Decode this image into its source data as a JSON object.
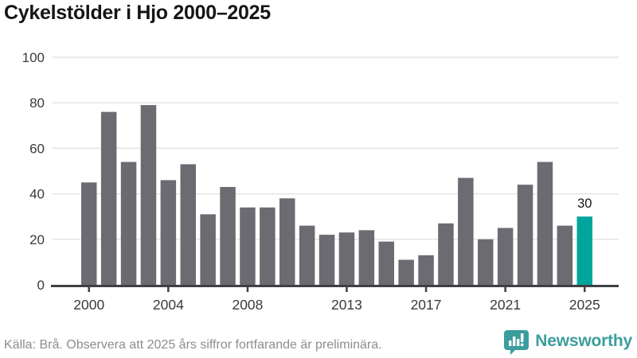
{
  "title": "Cykelstölder i Hjo 2000–2025",
  "footer": {
    "source_text": "Källa: Brå. Observera att 2025 års siffror fortfarande är preliminära."
  },
  "branding": {
    "name": "Newsworthy",
    "logo_color": "#3c9d9d"
  },
  "colors": {
    "bar": "#6c6b71",
    "highlight_bar": "#00a69c",
    "grid_line": "#e4e4e4",
    "axis_line": "#3f3f44",
    "tick_label": "#3a3a3a",
    "value_label": "#151515"
  },
  "chart_data": {
    "type": "bar",
    "title": "Cykelstölder i Hjo 2000–2025",
    "x": [
      2000,
      2001,
      2002,
      2003,
      2004,
      2005,
      2006,
      2007,
      2008,
      2009,
      2010,
      2011,
      2012,
      2013,
      2014,
      2015,
      2016,
      2017,
      2018,
      2019,
      2020,
      2021,
      2022,
      2023,
      2024,
      2025
    ],
    "values": [
      45,
      76,
      54,
      79,
      46,
      53,
      31,
      43,
      34,
      34,
      38,
      26,
      22,
      23,
      24,
      19,
      11,
      13,
      27,
      47,
      20,
      25,
      44,
      54,
      26,
      30
    ],
    "highlight_year": 2025,
    "value_labels": [
      {
        "year": 2025,
        "text": "30"
      }
    ],
    "xlabel": "",
    "ylabel": "",
    "ylim": [
      0,
      100
    ],
    "yticks": [
      0,
      20,
      40,
      60,
      80,
      100
    ],
    "xticks": [
      2000,
      2004,
      2008,
      2013,
      2017,
      2021,
      2025
    ],
    "grid": true,
    "legend": false
  }
}
